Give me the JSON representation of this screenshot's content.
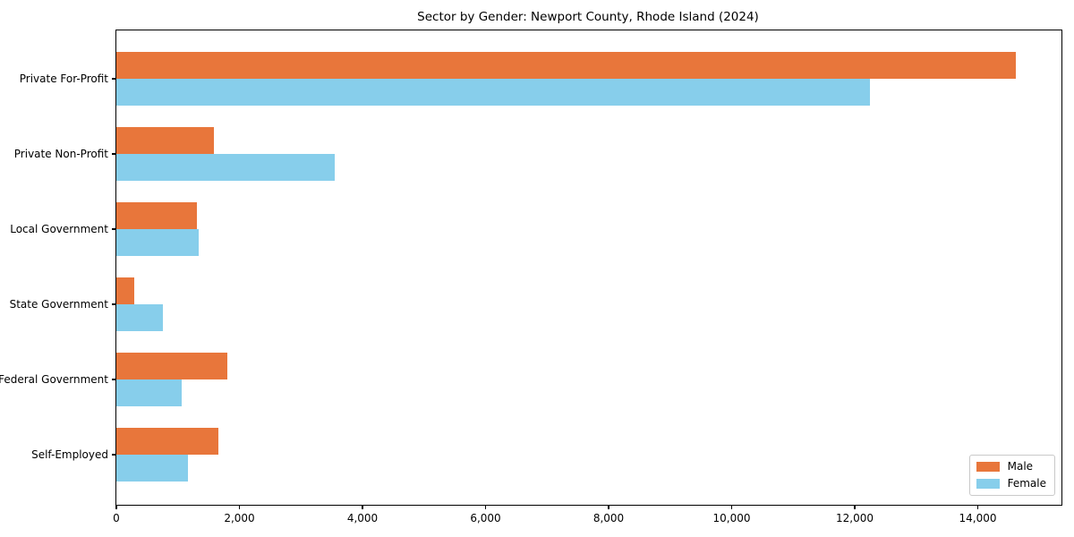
{
  "title": "Sector by Gender: Newport County, Rhode Island (2024)",
  "chart_data": {
    "type": "bar",
    "orientation": "horizontal",
    "title": "Sector by Gender: Newport County, Rhode Island (2024)",
    "categories": [
      "Private For-Profit",
      "Private Non-Profit",
      "Local Government",
      "State Government",
      "Federal Government",
      "Self-Employed"
    ],
    "series": [
      {
        "name": "Male",
        "color": "#E8763B",
        "values": [
          14620,
          1590,
          1315,
          290,
          1810,
          1660
        ]
      },
      {
        "name": "Female",
        "color": "#87CEEB",
        "values": [
          12250,
          3550,
          1335,
          750,
          1065,
          1160
        ]
      }
    ],
    "xlabel": "",
    "ylabel": "",
    "xlim": [
      0,
      15360
    ],
    "x_ticks": [
      0,
      2000,
      4000,
      6000,
      8000,
      10000,
      12000,
      14000
    ],
    "x_tick_labels": [
      "0",
      "2,000",
      "4,000",
      "6,000",
      "8,000",
      "10,000",
      "12,000",
      "14,000"
    ],
    "grid": false,
    "legend_position": "lower right"
  }
}
